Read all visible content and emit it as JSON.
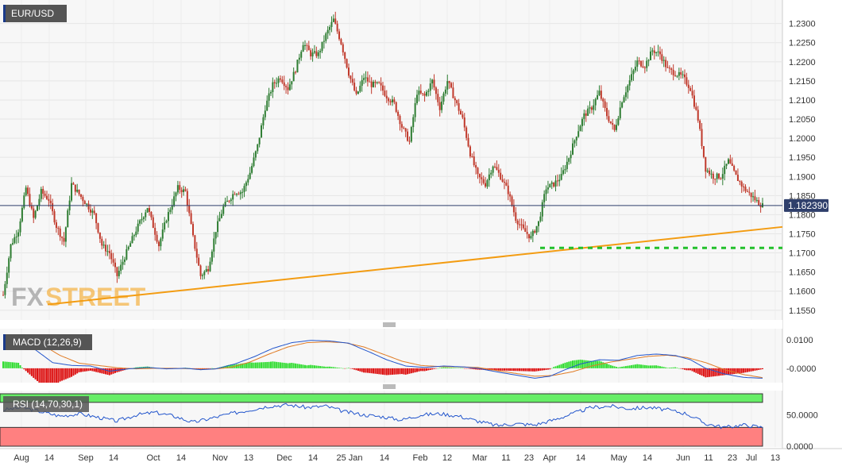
{
  "colors": {
    "up": "#2e7d32",
    "down": "#c0392b",
    "trend_line": "#f39c12",
    "support_line": "#22c02b",
    "price_line": "#2f3f6b",
    "macd_line": "#2255cc",
    "signal_line": "#e07b24",
    "hist_pos": "#33dd33",
    "hist_neg": "#dd1111",
    "rsi_line": "#2255cc",
    "rsi_upper_zone": "#66ee66",
    "rsi_lower_zone": "#ff8080"
  },
  "chart_data": [
    {
      "type": "candlestick",
      "title": "EUR/USD",
      "current_price_label": "1.182390",
      "current_price": 1.18239,
      "ylim": [
        1.1535,
        1.2345
      ],
      "y_ticks": [
        "1.2300",
        "1.2250",
        "1.2200",
        "1.2150",
        "1.2100",
        "1.2050",
        "1.2000",
        "1.1950",
        "1.1900",
        "1.1850",
        "1.1800",
        "1.1750",
        "1.1700",
        "1.1650",
        "1.1600",
        "1.1550"
      ],
      "x_ticks": [
        "Aug",
        "14",
        "Sep",
        "14",
        "Oct",
        "14",
        "Nov",
        "13",
        "Dec",
        "14",
        "25 Jan",
        "14",
        "Feb",
        "12",
        "Mar",
        "11",
        "23",
        "Apr",
        "14",
        "May",
        "14",
        "Jun",
        "11",
        "23",
        "Jul",
        "13"
      ],
      "anchors": [
        [
          0,
          1.159
        ],
        [
          4,
          1.172
        ],
        [
          8,
          1.176
        ],
        [
          12,
          1.187
        ],
        [
          16,
          1.179
        ],
        [
          20,
          1.186
        ],
        [
          24,
          1.184
        ],
        [
          28,
          1.177
        ],
        [
          32,
          1.173
        ],
        [
          36,
          1.188
        ],
        [
          42,
          1.184
        ],
        [
          48,
          1.18
        ],
        [
          52,
          1.172
        ],
        [
          56,
          1.17
        ],
        [
          60,
          1.164
        ],
        [
          64,
          1.169
        ],
        [
          70,
          1.176
        ],
        [
          76,
          1.182
        ],
        [
          82,
          1.172
        ],
        [
          86,
          1.179
        ],
        [
          92,
          1.187
        ],
        [
          96,
          1.186
        ],
        [
          100,
          1.174
        ],
        [
          104,
          1.164
        ],
        [
          108,
          1.166
        ],
        [
          112,
          1.176
        ],
        [
          116,
          1.182
        ],
        [
          122,
          1.186
        ],
        [
          126,
          1.186
        ],
        [
          130,
          1.191
        ],
        [
          134,
          1.198
        ],
        [
          138,
          1.208
        ],
        [
          142,
          1.214
        ],
        [
          146,
          1.216
        ],
        [
          150,
          1.213
        ],
        [
          154,
          1.218
        ],
        [
          158,
          1.225
        ],
        [
          162,
          1.222
        ],
        [
          166,
          1.222
        ],
        [
          170,
          1.227
        ],
        [
          174,
          1.231
        ],
        [
          178,
          1.225
        ],
        [
          182,
          1.217
        ],
        [
          186,
          1.211
        ],
        [
          190,
          1.216
        ],
        [
          194,
          1.214
        ],
        [
          198,
          1.214
        ],
        [
          202,
          1.211
        ],
        [
          206,
          1.209
        ],
        [
          210,
          1.203
        ],
        [
          214,
          1.199
        ],
        [
          218,
          1.212
        ],
        [
          222,
          1.211
        ],
        [
          226,
          1.215
        ],
        [
          230,
          1.208
        ],
        [
          234,
          1.215
        ],
        [
          238,
          1.21
        ],
        [
          242,
          1.205
        ],
        [
          246,
          1.196
        ],
        [
          250,
          1.19
        ],
        [
          254,
          1.188
        ],
        [
          258,
          1.193
        ],
        [
          262,
          1.19
        ],
        [
          266,
          1.186
        ],
        [
          270,
          1.179
        ],
        [
          274,
          1.176
        ],
        [
          278,
          1.174
        ],
        [
          282,
          1.178
        ],
        [
          286,
          1.187
        ],
        [
          290,
          1.188
        ],
        [
          294,
          1.19
        ],
        [
          298,
          1.195
        ],
        [
          302,
          1.201
        ],
        [
          306,
          1.206
        ],
        [
          310,
          1.208
        ],
        [
          314,
          1.212
        ],
        [
          318,
          1.206
        ],
        [
          322,
          1.202
        ],
        [
          326,
          1.21
        ],
        [
          330,
          1.215
        ],
        [
          334,
          1.22
        ],
        [
          338,
          1.219
        ],
        [
          342,
          1.223
        ],
        [
          346,
          1.222
        ],
        [
          350,
          1.218
        ],
        [
          354,
          1.217
        ],
        [
          358,
          1.216
        ],
        [
          362,
          1.213
        ],
        [
          366,
          1.205
        ],
        [
          370,
          1.192
        ],
        [
          374,
          1.19
        ],
        [
          378,
          1.19
        ],
        [
          382,
          1.194
        ],
        [
          386,
          1.19
        ],
        [
          390,
          1.187
        ],
        [
          394,
          1.185
        ],
        [
          398,
          1.183
        ],
        [
          400,
          1.1824
        ]
      ],
      "trendline": {
        "from": [
          "Aug",
          1.1565
        ],
        "to": [
          "Jul 13",
          1.1768
        ]
      },
      "support_level": 1.1713
    },
    {
      "type": "line",
      "title": "MACD (12,26,9)",
      "y_ticks": [
        "0.0100",
        "-0.0000"
      ],
      "ylim": [
        -0.0045,
        0.0128
      ],
      "macd_anchors": [
        [
          0,
          0.0115
        ],
        [
          8,
          0.0112
        ],
        [
          16,
          0.007
        ],
        [
          26,
          0.002
        ],
        [
          36,
          0.001
        ],
        [
          46,
          0.0008
        ],
        [
          56,
          -0.001
        ],
        [
          66,
          -0.0002
        ],
        [
          76,
          0.0003
        ],
        [
          86,
          -0.0002
        ],
        [
          96,
          0.0
        ],
        [
          104,
          -0.0005
        ],
        [
          112,
          -0.0002
        ],
        [
          122,
          0.0015
        ],
        [
          132,
          0.004
        ],
        [
          142,
          0.007
        ],
        [
          152,
          0.009
        ],
        [
          162,
          0.0098
        ],
        [
          172,
          0.0096
        ],
        [
          182,
          0.0088
        ],
        [
          192,
          0.006
        ],
        [
          202,
          0.003
        ],
        [
          212,
          0.0008
        ],
        [
          222,
          0.0003
        ],
        [
          232,
          0.0008
        ],
        [
          242,
          0.0005
        ],
        [
          250,
          0.0
        ],
        [
          262,
          -0.0015
        ],
        [
          272,
          -0.0026
        ],
        [
          280,
          -0.0035
        ],
        [
          288,
          -0.0028
        ],
        [
          296,
          -0.0005
        ],
        [
          304,
          0.0015
        ],
        [
          314,
          0.003
        ],
        [
          324,
          0.0028
        ],
        [
          334,
          0.0045
        ],
        [
          344,
          0.005
        ],
        [
          354,
          0.0045
        ],
        [
          362,
          0.003
        ],
        [
          370,
          0.0
        ],
        [
          380,
          -0.002
        ],
        [
          390,
          -0.0032
        ],
        [
          400,
          -0.0035
        ]
      ],
      "signal_anchors": [
        [
          0,
          0.01
        ],
        [
          10,
          0.01
        ],
        [
          20,
          0.0085
        ],
        [
          30,
          0.0045
        ],
        [
          40,
          0.0018
        ],
        [
          50,
          0.001
        ],
        [
          60,
          0.0002
        ],
        [
          70,
          -0.0002
        ],
        [
          80,
          0.0
        ],
        [
          90,
          0.0
        ],
        [
          100,
          -0.0002
        ],
        [
          110,
          -0.0003
        ],
        [
          120,
          0.0003
        ],
        [
          130,
          0.0022
        ],
        [
          140,
          0.005
        ],
        [
          150,
          0.0075
        ],
        [
          160,
          0.009
        ],
        [
          170,
          0.0093
        ],
        [
          180,
          0.009
        ],
        [
          190,
          0.0075
        ],
        [
          200,
          0.005
        ],
        [
          210,
          0.0025
        ],
        [
          220,
          0.001
        ],
        [
          230,
          0.0006
        ],
        [
          240,
          0.0005
        ],
        [
          250,
          0.0003
        ],
        [
          260,
          -0.0008
        ],
        [
          270,
          -0.0018
        ],
        [
          280,
          -0.0028
        ],
        [
          290,
          -0.0025
        ],
        [
          300,
          -0.0012
        ],
        [
          310,
          0.0008
        ],
        [
          320,
          0.0022
        ],
        [
          330,
          0.0032
        ],
        [
          340,
          0.0042
        ],
        [
          350,
          0.0046
        ],
        [
          360,
          0.0038
        ],
        [
          370,
          0.002
        ],
        [
          380,
          -0.0005
        ],
        [
          390,
          -0.0022
        ],
        [
          400,
          -0.0033
        ]
      ]
    },
    {
      "type": "line",
      "title": "RSI (14,70,30,1)",
      "y_ticks": [
        "50.0000",
        "0.0000"
      ],
      "ylim": [
        0,
        85
      ],
      "upper_level": 70,
      "lower_level": 30,
      "rsi_anchors": [
        [
          0,
          58
        ],
        [
          10,
          62
        ],
        [
          20,
          55
        ],
        [
          30,
          48
        ],
        [
          40,
          52
        ],
        [
          50,
          46
        ],
        [
          60,
          40
        ],
        [
          70,
          50
        ],
        [
          80,
          54
        ],
        [
          90,
          48
        ],
        [
          100,
          38
        ],
        [
          110,
          45
        ],
        [
          120,
          52
        ],
        [
          130,
          58
        ],
        [
          140,
          64
        ],
        [
          150,
          66
        ],
        [
          160,
          62
        ],
        [
          170,
          64
        ],
        [
          180,
          55
        ],
        [
          190,
          50
        ],
        [
          200,
          47
        ],
        [
          210,
          42
        ],
        [
          220,
          50
        ],
        [
          230,
          52
        ],
        [
          240,
          48
        ],
        [
          250,
          40
        ],
        [
          260,
          33
        ],
        [
          270,
          36
        ],
        [
          280,
          34
        ],
        [
          290,
          42
        ],
        [
          300,
          52
        ],
        [
          310,
          62
        ],
        [
          320,
          64
        ],
        [
          330,
          60
        ],
        [
          340,
          62
        ],
        [
          350,
          58
        ],
        [
          360,
          52
        ],
        [
          370,
          36
        ],
        [
          380,
          30
        ],
        [
          390,
          34
        ],
        [
          400,
          30
        ]
      ]
    }
  ]
}
